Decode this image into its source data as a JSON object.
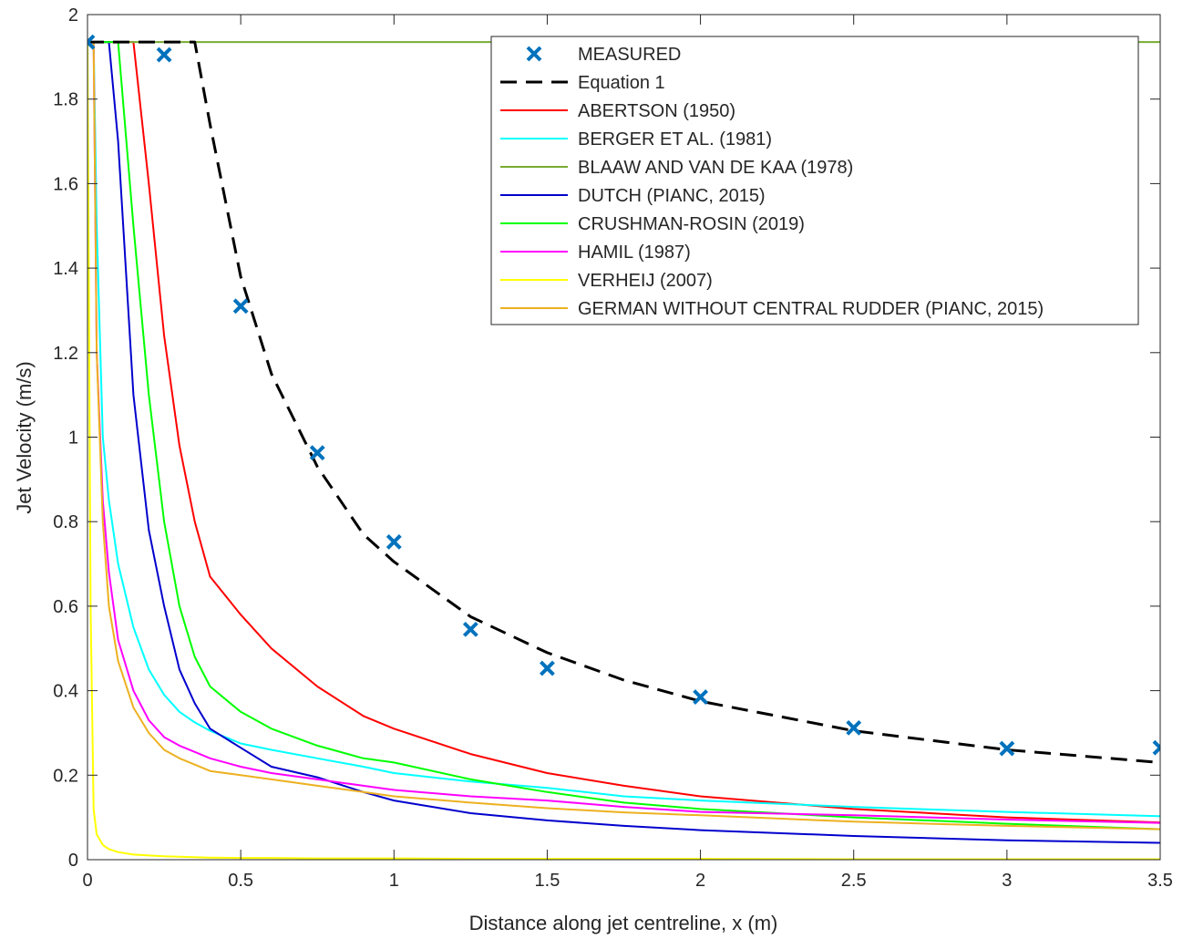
{
  "chart_data": {
    "type": "line",
    "title": "",
    "xlabel": "Distance along jet centreline, x (m)",
    "ylabel": "Jet Velocity (m/s)",
    "xlim": [
      0,
      3.5
    ],
    "ylim": [
      0,
      2
    ],
    "xticks": [
      0,
      0.5,
      1,
      1.5,
      2,
      2.5,
      3,
      3.5
    ],
    "yticks": [
      0,
      0.2,
      0.4,
      0.6,
      0.8,
      1,
      1.2,
      1.4,
      1.6,
      1.8,
      2
    ],
    "xtick_labels": [
      "0",
      "0.5",
      "1",
      "1.5",
      "2",
      "2.5",
      "3",
      "3.5"
    ],
    "ytick_labels": [
      "0",
      "0.2",
      "0.4",
      "0.6",
      "0.8",
      "1",
      "1.2",
      "1.4",
      "1.6",
      "1.8",
      "2"
    ],
    "grid": false,
    "legend_position": "top-right",
    "x": [
      0,
      0.01,
      0.02,
      0.03,
      0.05,
      0.07,
      0.1,
      0.15,
      0.2,
      0.25,
      0.3,
      0.35,
      0.4,
      0.5,
      0.6,
      0.75,
      0.9,
      1.0,
      1.25,
      1.5,
      1.75,
      2.0,
      2.5,
      3.0,
      3.5
    ],
    "series": [
      {
        "name": "MEASURED",
        "kind": "markers",
        "color": "#0072BD",
        "x": [
          0,
          0.25,
          0.5,
          0.75,
          1.0,
          1.25,
          1.5,
          2.0,
          2.5,
          3.0,
          3.5
        ],
        "values": [
          1.935,
          1.905,
          1.31,
          0.963,
          0.752,
          0.545,
          0.453,
          0.385,
          0.312,
          0.263,
          0.265
        ]
      },
      {
        "name": "Equation 1",
        "kind": "dashed",
        "color": "#000000",
        "values": [
          1.935,
          1.935,
          1.935,
          1.935,
          1.935,
          1.935,
          1.935,
          1.935,
          1.935,
          1.935,
          1.935,
          1.935,
          1.74,
          1.38,
          1.15,
          0.93,
          0.77,
          0.705,
          0.575,
          0.49,
          0.425,
          0.375,
          0.305,
          0.26,
          0.23
        ]
      },
      {
        "name": "ABERTSON (1950)",
        "kind": "line",
        "color": "#FF0000",
        "values": [
          1.935,
          1.935,
          1.935,
          1.935,
          1.935,
          1.935,
          1.935,
          1.935,
          1.6,
          1.24,
          0.98,
          0.8,
          0.67,
          0.58,
          0.5,
          0.41,
          0.34,
          0.31,
          0.25,
          0.205,
          0.175,
          0.15,
          0.12,
          0.1,
          0.088
        ]
      },
      {
        "name": "BERGER ET AL. (1981)",
        "kind": "line",
        "color": "#00FFFF",
        "values": [
          1.935,
          1.935,
          1.935,
          1.5,
          1.0,
          0.85,
          0.7,
          0.55,
          0.45,
          0.39,
          0.35,
          0.325,
          0.305,
          0.275,
          0.26,
          0.24,
          0.22,
          0.205,
          0.185,
          0.17,
          0.15,
          0.14,
          0.125,
          0.113,
          0.103
        ]
      },
      {
        "name": "BLAAW AND VAN DE KAA (1978)",
        "kind": "line",
        "color": "#77AC30",
        "values": [
          1.935,
          1.935,
          1.935,
          1.935,
          1.935,
          1.935,
          1.935,
          1.935,
          1.935,
          1.935,
          1.935,
          1.935,
          1.935,
          1.935,
          1.935,
          1.935,
          1.935,
          1.935,
          1.935,
          1.935,
          1.935,
          1.935,
          1.935,
          1.935,
          1.935
        ]
      },
      {
        "name": "DUTCH (PIANC, 2015)",
        "kind": "line",
        "color": "#0000CD",
        "values": [
          1.935,
          1.935,
          1.935,
          1.935,
          1.935,
          1.935,
          1.7,
          1.1,
          0.78,
          0.6,
          0.45,
          0.37,
          0.31,
          0.265,
          0.22,
          0.195,
          0.16,
          0.14,
          0.11,
          0.093,
          0.08,
          0.07,
          0.056,
          0.046,
          0.04
        ]
      },
      {
        "name": "CRUSHMAN-ROSIN (2019)",
        "kind": "line",
        "color": "#00FF00",
        "values": [
          1.935,
          1.935,
          1.935,
          1.935,
          1.935,
          1.935,
          1.935,
          1.5,
          1.1,
          0.8,
          0.6,
          0.48,
          0.41,
          0.35,
          0.31,
          0.27,
          0.24,
          0.23,
          0.19,
          0.16,
          0.135,
          0.12,
          0.1,
          0.085,
          0.072
        ]
      },
      {
        "name": "HAMIL (1987)",
        "kind": "line",
        "color": "#FF00FF",
        "values": [
          1.935,
          1.935,
          1.935,
          1.2,
          0.85,
          0.68,
          0.52,
          0.4,
          0.33,
          0.29,
          0.27,
          0.255,
          0.24,
          0.22,
          0.205,
          0.19,
          0.175,
          0.165,
          0.15,
          0.14,
          0.125,
          0.113,
          0.105,
          0.095,
          0.087
        ]
      },
      {
        "name": "VERHEIJ (2007)",
        "kind": "line",
        "color": "#FFFF00",
        "values": [
          1.935,
          0.6,
          0.12,
          0.06,
          0.035,
          0.025,
          0.018,
          0.012,
          0.01,
          0.008,
          0.007,
          0.006,
          0.005,
          0.004,
          0.004,
          0.003,
          0.003,
          0.003,
          0.002,
          0.002,
          0.002,
          0.002,
          0.001,
          0.001,
          0.001
        ]
      },
      {
        "name": "GERMAN WITHOUT CENTRAL RUDDER (PIANC, 2015)",
        "kind": "line",
        "color": "#EDB120",
        "values": [
          1.935,
          1.935,
          1.935,
          1.2,
          0.8,
          0.6,
          0.47,
          0.36,
          0.3,
          0.26,
          0.24,
          0.225,
          0.21,
          0.2,
          0.19,
          0.175,
          0.16,
          0.15,
          0.135,
          0.122,
          0.112,
          0.105,
          0.09,
          0.08,
          0.072
        ]
      }
    ]
  }
}
